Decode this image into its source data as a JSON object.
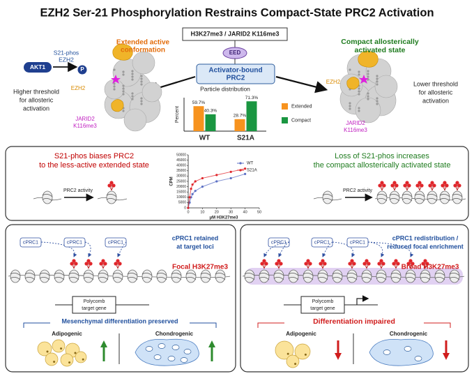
{
  "title": "EZH2 Ser-21 Phosphorylation Restrains Compact-State PRC2 Activation",
  "top": {
    "ligand": "H3K27me3 / JARID2 K116me3",
    "eed": "EED",
    "prc2": [
      "Activator-bound",
      "PRC2"
    ],
    "akt1": "AKT1",
    "s21_phos": [
      "S21-phos",
      "EZH2"
    ],
    "phospho": "P",
    "extended": [
      "Extended active",
      "conformation"
    ],
    "ezh2_left": "EZH2",
    "jarid2_left": [
      "JARID2",
      "K116me3"
    ],
    "higher": [
      "Higher threshold",
      "for allosteric",
      "activation"
    ],
    "compact": [
      "Compact allosterically",
      "activated state"
    ],
    "ezh2_right": "EZH2",
    "jarid2_right": [
      "JARID2",
      "K116me3"
    ],
    "lower": [
      "Lower threshold",
      "for allosteric",
      "activation"
    ]
  },
  "middle": {
    "left_text": [
      "S21-phos biases PRC2",
      "to the less-active extended state"
    ],
    "left_activity": "PRC2 activity",
    "right_text": [
      "Loss of S21-phos increases",
      "the compact allosterically activated state"
    ],
    "right_activity": "PRC2 activity"
  },
  "bottom_left": {
    "cprc1": [
      "cPRC1",
      "cPRC1",
      "cPRC1"
    ],
    "retained": [
      "cPRC1 retained",
      "at target loci"
    ],
    "mark": "Focal H3K27me3",
    "gene": [
      "Polycomb",
      "target gene"
    ],
    "outcome": "Mesenchymal differentiation preserved",
    "lineages": [
      "Adipogenic",
      "Chondrogenic"
    ]
  },
  "bottom_right": {
    "cprc1": [
      "cPRC1",
      "cPRC1",
      "cPRC1"
    ],
    "redistribution": [
      "cPRC1 redistribution /",
      "reduced focal enrichment"
    ],
    "mark": "Broad H3K27me3",
    "gene": [
      "Polycomb",
      "target gene"
    ],
    "outcome": "Differentiation impaired",
    "lineages": [
      "Adipogenic",
      "Chondrogenic"
    ]
  },
  "chart_data": [
    {
      "type": "bar",
      "title": "Particle distribution",
      "y_label": "Percent",
      "categories": [
        "WT",
        "S21A"
      ],
      "series": [
        {
          "name": "Extended",
          "color": "#f7931e",
          "values": [
            59.7,
            28.7
          ],
          "value_labels": [
            "59.7%",
            "28.7%"
          ]
        },
        {
          "name": "Compact",
          "color": "#1a9641",
          "values": [
            40.3,
            71.3
          ],
          "value_labels": [
            "40.3%",
            "71.3%"
          ]
        }
      ],
      "ylim": [
        0,
        80
      ]
    },
    {
      "type": "line",
      "x_label": "μM H3K27me3",
      "y_label": "CPM",
      "x": [
        0,
        1,
        2,
        3,
        5,
        10,
        20,
        30,
        40
      ],
      "series": [
        {
          "name": "WT",
          "color": "#5b6fc4",
          "values": [
            0,
            5000,
            10000,
            13000,
            16000,
            20000,
            25000,
            28000,
            32000
          ]
        },
        {
          "name": "S21A",
          "color": "#e0262b",
          "values": [
            0,
            10000,
            18000,
            22000,
            25000,
            28000,
            31000,
            34000,
            37000
          ]
        }
      ],
      "xlim": [
        0,
        50
      ],
      "xticks": [
        0,
        10,
        20,
        30,
        40,
        50
      ],
      "ylim": [
        0,
        50000
      ],
      "yticks": [
        0,
        5000,
        10000,
        15000,
        20000,
        25000,
        30000,
        35000,
        40000,
        45000,
        50000
      ]
    }
  ]
}
